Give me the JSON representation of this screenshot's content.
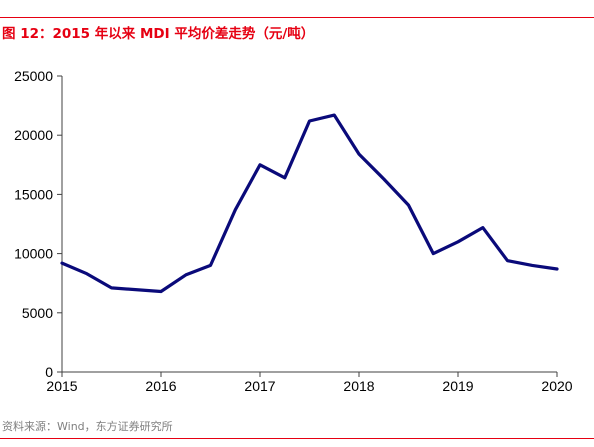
{
  "colors": {
    "accent": "#e60012",
    "series": "#0a0a7a",
    "axis": "#404040"
  },
  "header": {
    "title": "图 12：2015 年以来 MDI 平均价差走势（元/吨）"
  },
  "footer": {
    "source": "资料来源：Wind，东方证券研究所"
  },
  "chart_data": {
    "type": "line",
    "title": "图 12：2015 年以来 MDI 平均价差走势（元/吨）",
    "xlabel": "",
    "ylabel": "",
    "xlim": [
      2015,
      2020
    ],
    "ylim": [
      0,
      25000
    ],
    "x_ticks": [
      2015,
      2016,
      2017,
      2018,
      2019,
      2020
    ],
    "y_ticks": [
      0,
      5000,
      10000,
      15000,
      20000,
      25000
    ],
    "grid": false,
    "legend": "none",
    "series": [
      {
        "x": [
          2015.0,
          2015.25,
          2015.5,
          2016.0,
          2016.25,
          2016.5,
          2016.75,
          2017.0,
          2017.25,
          2017.5,
          2017.75,
          2018.0,
          2018.25,
          2018.5,
          2018.75,
          2019.0,
          2019.25,
          2019.5,
          2019.75,
          2020.0
        ],
        "values": [
          9200,
          8300,
          7100,
          6800,
          8200,
          9000,
          13700,
          17500,
          16400,
          21200,
          21700,
          18400,
          16300,
          14100,
          10000,
          11000,
          12200,
          9400,
          9000,
          8700
        ]
      }
    ]
  }
}
